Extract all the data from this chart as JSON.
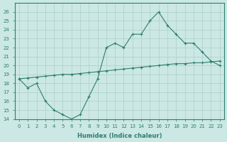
{
  "line1_x": [
    0,
    1,
    2,
    3,
    4,
    5,
    6,
    7,
    8,
    9,
    10,
    11,
    12,
    13,
    14,
    15,
    16,
    17,
    18,
    19,
    20,
    21,
    22,
    23
  ],
  "line1_y": [
    18.5,
    17.5,
    18.0,
    16.0,
    15.0,
    14.5,
    14.0,
    14.5,
    16.5,
    18.5,
    22.0,
    22.5,
    22.0,
    23.5,
    23.5,
    25.0,
    26.0,
    24.5,
    23.5,
    22.5,
    22.5,
    21.5,
    20.5,
    20.0
  ],
  "line2_x": [
    0,
    1,
    2,
    3,
    4,
    5,
    6,
    7,
    8,
    9,
    10,
    11,
    12,
    13,
    14,
    15,
    16,
    17,
    18,
    19,
    20,
    21,
    22,
    23
  ],
  "line2_y": [
    18.5,
    18.6,
    18.7,
    18.8,
    18.9,
    19.0,
    19.0,
    19.1,
    19.2,
    19.3,
    19.4,
    19.5,
    19.6,
    19.7,
    19.8,
    19.9,
    20.0,
    20.1,
    20.2,
    20.2,
    20.3,
    20.3,
    20.4,
    20.5
  ],
  "line_color": "#2d7d6e",
  "bg_color": "#cce8e4",
  "grid_color": "#aaceca",
  "xlabel": "Humidex (Indice chaleur)",
  "ylim": [
    14,
    27
  ],
  "xlim": [
    -0.5,
    23.5
  ],
  "yticks": [
    14,
    15,
    16,
    17,
    18,
    19,
    20,
    21,
    22,
    23,
    24,
    25,
    26
  ],
  "xticks": [
    0,
    1,
    2,
    3,
    4,
    5,
    6,
    7,
    8,
    9,
    10,
    11,
    12,
    13,
    14,
    15,
    16,
    17,
    18,
    19,
    20,
    21,
    22,
    23
  ],
  "xtick_labels": [
    "0",
    "1",
    "2",
    "3",
    "4",
    "5",
    "6",
    "7",
    "8",
    "9",
    "10",
    "11",
    "12",
    "13",
    "14",
    "15",
    "16",
    "17",
    "18",
    "19",
    "20",
    "21",
    "22",
    "23"
  ]
}
